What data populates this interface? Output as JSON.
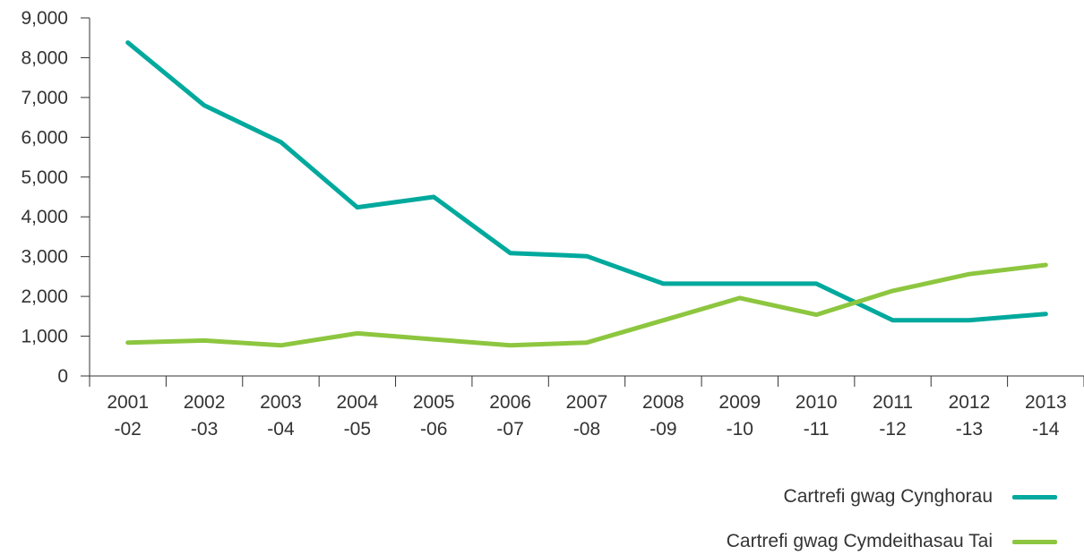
{
  "chart_data": {
    "type": "line",
    "categories": [
      [
        "2001",
        "-02"
      ],
      [
        "2002",
        "-03"
      ],
      [
        "2003",
        "-04"
      ],
      [
        "2004",
        "-05"
      ],
      [
        "2005",
        "-06"
      ],
      [
        "2006",
        "-07"
      ],
      [
        "2007",
        "-08"
      ],
      [
        "2008",
        "-09"
      ],
      [
        "2009",
        "-10"
      ],
      [
        "2010",
        "-11"
      ],
      [
        "2011",
        "-12"
      ],
      [
        "2012",
        "-13"
      ],
      [
        "2013",
        "-14"
      ]
    ],
    "y_ticks": [
      "0",
      "1,000",
      "2,000",
      "3,000",
      "4,000",
      "5,000",
      "6,000",
      "7,000",
      "8,000",
      "9,000"
    ],
    "ylim": [
      0,
      9000
    ],
    "grid": false,
    "legend_position": "bottom-right",
    "series": [
      {
        "name": "Cartrefi gwag Cynghorau",
        "color": "#00a99d",
        "values": [
          8380,
          6800,
          5880,
          4240,
          4500,
          3090,
          3010,
          2320,
          2320,
          2320,
          1400,
          1400,
          1560
        ]
      },
      {
        "name": "Cartrefi gwag Cymdeithasau Tai",
        "color": "#8dc63f",
        "values": [
          840,
          890,
          770,
          1070,
          920,
          770,
          840,
          1400,
          1960,
          1540,
          2140,
          2560,
          2790
        ]
      }
    ]
  }
}
